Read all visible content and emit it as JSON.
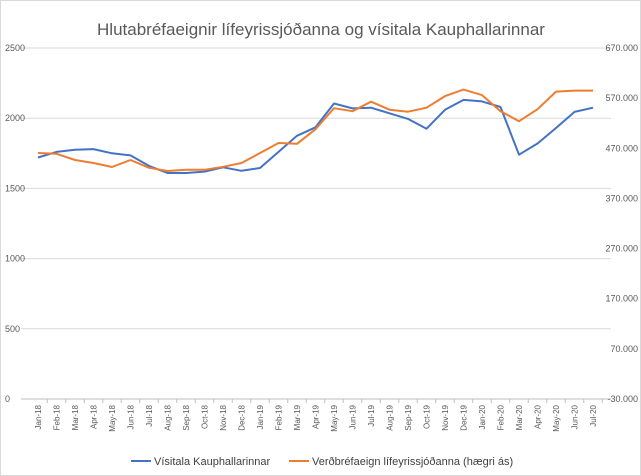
{
  "chart_data": {
    "type": "line",
    "title": "Hlutabréfaeignir lífeyrissjóðanna  og vísitala Kauphallarinnar",
    "categories": [
      "Jan-18",
      "Feb-18",
      "Mar-18",
      "Apr-18",
      "May-18",
      "Jun-18",
      "Jul-18",
      "Aug-18",
      "Sep-18",
      "Oct-18",
      "Nov-18",
      "Dec-18",
      "Jan-19",
      "Feb-19",
      "Mar-19",
      "Apr-19",
      "May-19",
      "Jun-19",
      "Jul-19",
      "Aug-19",
      "Sep-19",
      "Oct-19",
      "Nov-19",
      "Dec-19",
      "Jan-20",
      "Feb-20",
      "Mar-20",
      "Apr-20",
      "May-20",
      "Jun-20",
      "Jul-20"
    ],
    "y_left": {
      "range": [
        0,
        2500
      ],
      "ticks": [
        "0",
        "500",
        "1000",
        "1500",
        "2000",
        "2500"
      ]
    },
    "y_right": {
      "range": [
        -30000,
        670000
      ],
      "ticks": [
        "-30.000",
        "70.000",
        "170.000",
        "270.000",
        "370.000",
        "470.000",
        "570.000",
        "670.000"
      ]
    },
    "grid": true,
    "legend": "bottom",
    "series": [
      {
        "name": "Vísitala Kauphallarinnar",
        "axis": "left",
        "color": "#4472c4",
        "values": [
          1720,
          1760,
          1775,
          1780,
          1750,
          1735,
          1660,
          1610,
          1610,
          1620,
          1650,
          1625,
          1645,
          1760,
          1875,
          1935,
          2105,
          2070,
          2075,
          2035,
          1995,
          1925,
          2060,
          2130,
          2120,
          2080,
          1740,
          1820,
          1930,
          2045,
          2075
        ]
      },
      {
        "name": "Verðbréfaeign lífeyrissjóðanna (hægri ás)",
        "axis": "right",
        "color": "#ed7d31",
        "values": [
          460600,
          459000,
          446600,
          440700,
          432600,
          446600,
          431000,
          424700,
          427000,
          427000,
          433000,
          440700,
          460600,
          480500,
          479000,
          508000,
          550000,
          544000,
          563000,
          547000,
          543000,
          551000,
          574000,
          587000,
          576000,
          544000,
          524000,
          548000,
          583000,
          585000,
          585000
        ]
      }
    ]
  }
}
